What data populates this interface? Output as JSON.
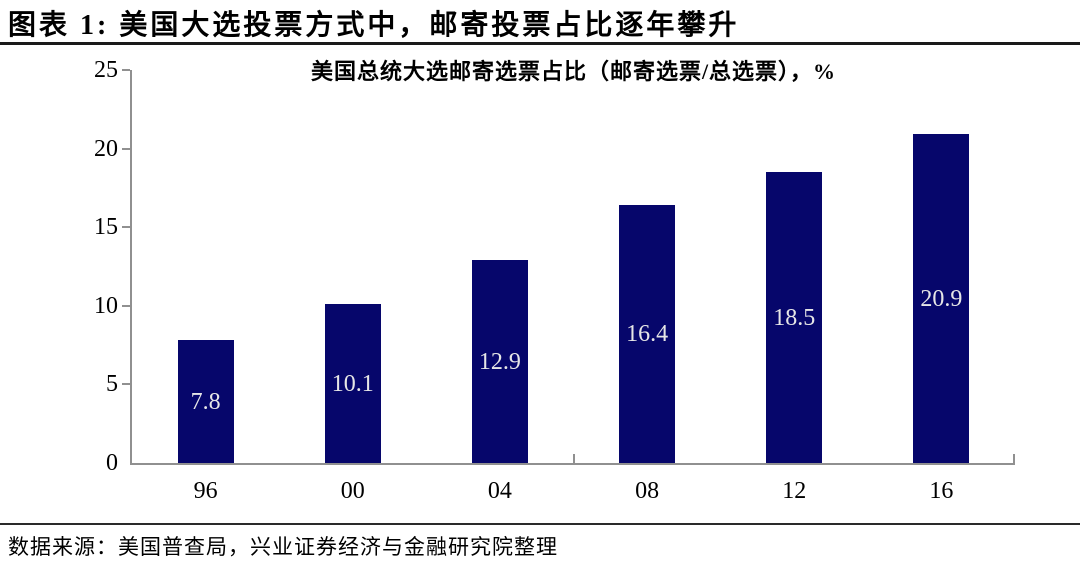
{
  "figure": {
    "title": "图表 1: 美国大选投票方式中，邮寄投票占比逐年攀升",
    "source": "数据来源：美国普查局，兴业证券经济与金融研究院整理"
  },
  "chart_data": {
    "type": "bar",
    "title": "美国总统大选邮寄选票占比（邮寄选票/总选票），%",
    "categories": [
      "96",
      "00",
      "04",
      "08",
      "12",
      "16"
    ],
    "values": [
      7.8,
      10.1,
      12.9,
      16.4,
      18.5,
      20.9
    ],
    "value_labels": [
      "7.8",
      "10.1",
      "12.9",
      "16.4",
      "18.5",
      "20.9"
    ],
    "xlabel": "",
    "ylabel": "",
    "ylim": [
      0,
      25
    ],
    "yticks": [
      0,
      5,
      10,
      15,
      20,
      25
    ],
    "grid": false,
    "legend": "none",
    "colors": {
      "bar": "#06066B",
      "bar_value_label": "#E6E6E6",
      "axis": "#909090",
      "text": "#000000"
    }
  }
}
